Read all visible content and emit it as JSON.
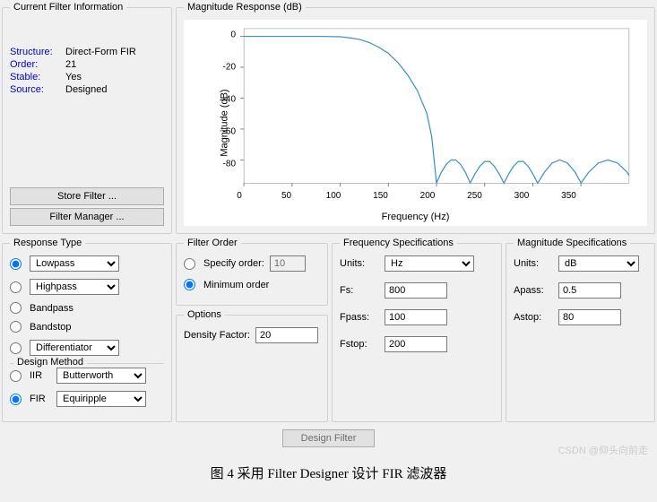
{
  "filterInfo": {
    "legend": "Current Filter Information",
    "rows": [
      {
        "label": "Structure:",
        "value": "Direct-Form FIR"
      },
      {
        "label": "Order:",
        "value": "21"
      },
      {
        "label": "Stable:",
        "value": "Yes"
      },
      {
        "label": "Source:",
        "value": "Designed"
      }
    ],
    "storeBtn": "Store Filter ...",
    "managerBtn": "Filter Manager ..."
  },
  "magResponse": {
    "legend": "Magnitude Response (dB)",
    "ylabel": "Magnitude (dB)",
    "xlabel": "Frequency (Hz)",
    "yticks": [
      0,
      -20,
      -40,
      -60,
      -80
    ],
    "xticks": [
      0,
      50,
      100,
      150,
      200,
      250,
      300,
      350
    ],
    "ylim": [
      -95,
      5
    ],
    "xlim": [
      0,
      400
    ],
    "lineColor": "#3b8ec9",
    "tickColor": "#808080",
    "curve": [
      [
        0,
        0
      ],
      [
        20,
        0
      ],
      [
        40,
        0
      ],
      [
        60,
        0
      ],
      [
        80,
        0
      ],
      [
        100,
        -0.3
      ],
      [
        110,
        -1
      ],
      [
        120,
        -2
      ],
      [
        130,
        -4
      ],
      [
        140,
        -7
      ],
      [
        150,
        -11
      ],
      [
        160,
        -17
      ],
      [
        170,
        -25
      ],
      [
        180,
        -35
      ],
      [
        190,
        -50
      ],
      [
        195,
        -65
      ],
      [
        200,
        -95
      ],
      [
        205,
        -88
      ],
      [
        210,
        -83
      ],
      [
        215,
        -80
      ],
      [
        220,
        -80
      ],
      [
        225,
        -83
      ],
      [
        230,
        -88
      ],
      [
        235,
        -95
      ],
      [
        240,
        -89
      ],
      [
        245,
        -84
      ],
      [
        250,
        -81
      ],
      [
        255,
        -81
      ],
      [
        260,
        -84
      ],
      [
        265,
        -89
      ],
      [
        270,
        -95
      ],
      [
        275,
        -89
      ],
      [
        280,
        -84
      ],
      [
        285,
        -81
      ],
      [
        290,
        -81
      ],
      [
        295,
        -84
      ],
      [
        300,
        -89
      ],
      [
        305,
        -95
      ],
      [
        312,
        -88
      ],
      [
        320,
        -82
      ],
      [
        328,
        -80
      ],
      [
        336,
        -82
      ],
      [
        344,
        -88
      ],
      [
        350,
        -95
      ],
      [
        358,
        -88
      ],
      [
        368,
        -82
      ],
      [
        378,
        -80
      ],
      [
        388,
        -82
      ],
      [
        398,
        -88
      ],
      [
        400,
        -90
      ]
    ]
  },
  "responseType": {
    "legend": "Response Type",
    "items": [
      {
        "name": "lowpass",
        "label": "Lowpass",
        "dropdown": true,
        "checked": true
      },
      {
        "name": "highpass",
        "label": "Highpass",
        "dropdown": true,
        "checked": false
      },
      {
        "name": "bandpass",
        "label": "Bandpass",
        "dropdown": false,
        "checked": false
      },
      {
        "name": "bandstop",
        "label": "Bandstop",
        "dropdown": false,
        "checked": false
      },
      {
        "name": "diff",
        "label": "Differentiator",
        "dropdown": true,
        "checked": false
      }
    ],
    "designLegend": "Design Method",
    "design": [
      {
        "name": "iir",
        "label": "IIR",
        "select": "Butterworth",
        "checked": false
      },
      {
        "name": "fir",
        "label": "FIR",
        "select": "Equiripple",
        "checked": true
      }
    ]
  },
  "filterOrder": {
    "legend": "Filter Order",
    "specifyLabel": "Specify order:",
    "specifyValue": "10",
    "minLabel": "Minimum order"
  },
  "options": {
    "legend": "Options",
    "densityLabel": "Density Factor:",
    "densityValue": "20"
  },
  "freqSpecs": {
    "legend": "Frequency Specifications",
    "unitsLabel": "Units:",
    "unitsValue": "Hz",
    "rows": [
      {
        "label": "Fs:",
        "value": "800"
      },
      {
        "label": "Fpass:",
        "value": "100"
      },
      {
        "label": "Fstop:",
        "value": "200"
      }
    ]
  },
  "magSpecs": {
    "legend": "Magnitude Specifications",
    "unitsLabel": "Units:",
    "unitsValue": "dB",
    "rows": [
      {
        "label": "Apass:",
        "value": "0.5"
      },
      {
        "label": "Astop:",
        "value": "80"
      }
    ]
  },
  "designBtn": "Design Filter",
  "caption": "图 4 采用 Filter Designer 设计 FIR 滤波器",
  "watermark": "CSDN @仰头向前走"
}
